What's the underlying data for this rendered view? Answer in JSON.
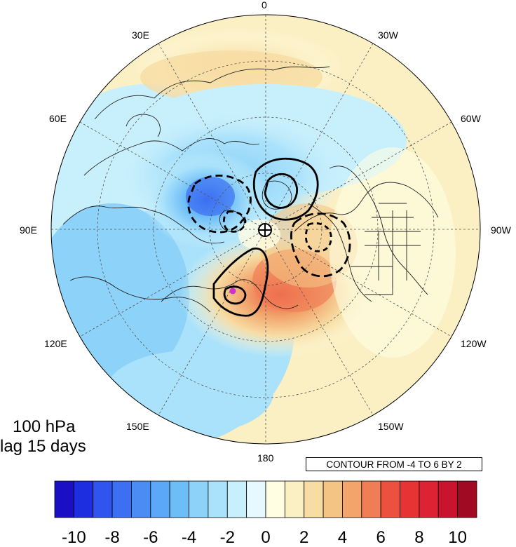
{
  "panel": {
    "level": "100 hPa",
    "lag": "lag 15 days"
  },
  "contour_info": "CONTOUR FROM -4 TO 6 BY 2",
  "longitude_labels": [
    "0",
    "30W",
    "60W",
    "90W",
    "120W",
    "150W",
    "180",
    "150E",
    "120E",
    "90E",
    "60E",
    "30E"
  ],
  "colorbar": {
    "tick_labels": [
      "-10",
      "-8",
      "-6",
      "-4",
      "-2",
      "0",
      "2",
      "4",
      "6",
      "8",
      "10"
    ],
    "colors": [
      "#1a0fc4",
      "#1c2ee0",
      "#2f55ee",
      "#3d6ff2",
      "#4a8cf4",
      "#5aa8f7",
      "#6dbdf7",
      "#8dd2f8",
      "#aae2fb",
      "#c8effc",
      "#e6f9fe",
      "#fffde2",
      "#fbefc4",
      "#f7dca3",
      "#f4c484",
      "#f2a46b",
      "#ef7d56",
      "#ec5140",
      "#e73333",
      "#dc2233",
      "#c8142e",
      "#a00a22"
    ]
  },
  "map": {
    "projection": "north-polar-stereographic",
    "field_range": [
      -10,
      10
    ],
    "features": {
      "negative_anomaly": "blue over Siberia / Kara Sea",
      "positive_anomaly": "red over Bering Sea / Alaska",
      "marker_color": "#cc33cc"
    }
  }
}
